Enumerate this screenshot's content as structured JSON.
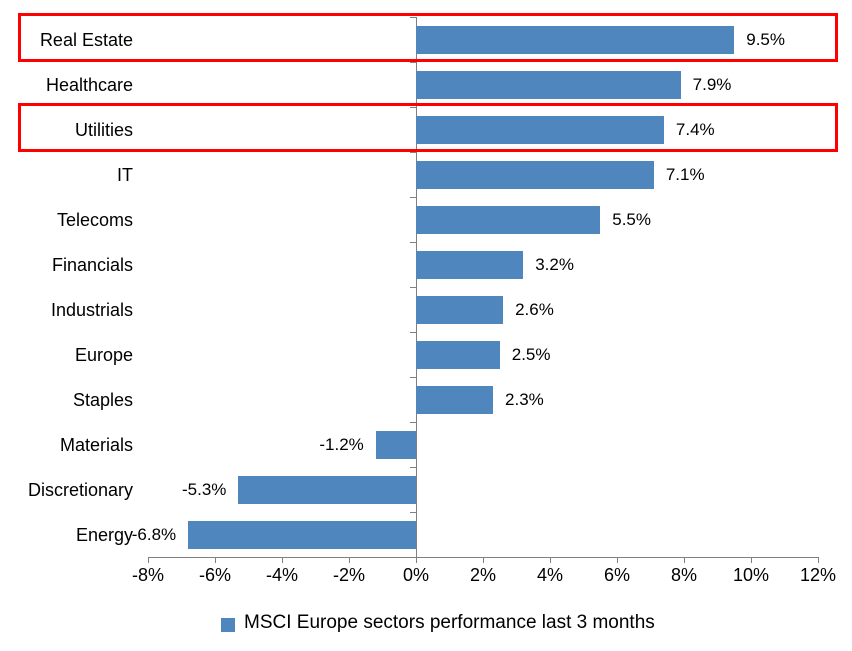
{
  "chart_data": {
    "type": "bar",
    "orientation": "horizontal",
    "title": "",
    "categories": [
      "Real Estate",
      "Healthcare",
      "Utilities",
      "IT",
      "Telecoms",
      "Financials",
      "Industrials",
      "Europe",
      "Staples",
      "Materials",
      "Discretionary",
      "Energy"
    ],
    "values": [
      9.5,
      7.9,
      7.4,
      7.1,
      5.5,
      3.2,
      2.6,
      2.5,
      2.3,
      -1.2,
      -5.3,
      -6.8
    ],
    "data_labels": [
      "9.5%",
      "7.9%",
      "7.4%",
      "7.1%",
      "5.5%",
      "3.2%",
      "2.6%",
      "2.5%",
      "2.3%",
      "-1.2%",
      "-5.3%",
      "-6.8%"
    ],
    "x_tick_labels": [
      "-8%",
      "-6%",
      "-4%",
      "-2%",
      "0%",
      "2%",
      "4%",
      "6%",
      "8%",
      "10%",
      "12%"
    ],
    "x_tick_values": [
      -8,
      -6,
      -4,
      -2,
      0,
      2,
      4,
      6,
      8,
      10,
      12
    ],
    "xlim": [
      -8,
      12
    ],
    "grid": false,
    "legend_position": "bottom-center",
    "series_name": "MSCI Europe sectors performance last 3 months",
    "highlighted_categories": [
      "Real Estate",
      "Utilities"
    ],
    "colors": {
      "bar": "#4E86BD",
      "axis": "#808080",
      "highlight_border": "#FF0000",
      "text": "#000000",
      "background": "#FFFFFF"
    }
  },
  "legend": {
    "label": "MSCI Europe sectors performance last 3 months"
  }
}
